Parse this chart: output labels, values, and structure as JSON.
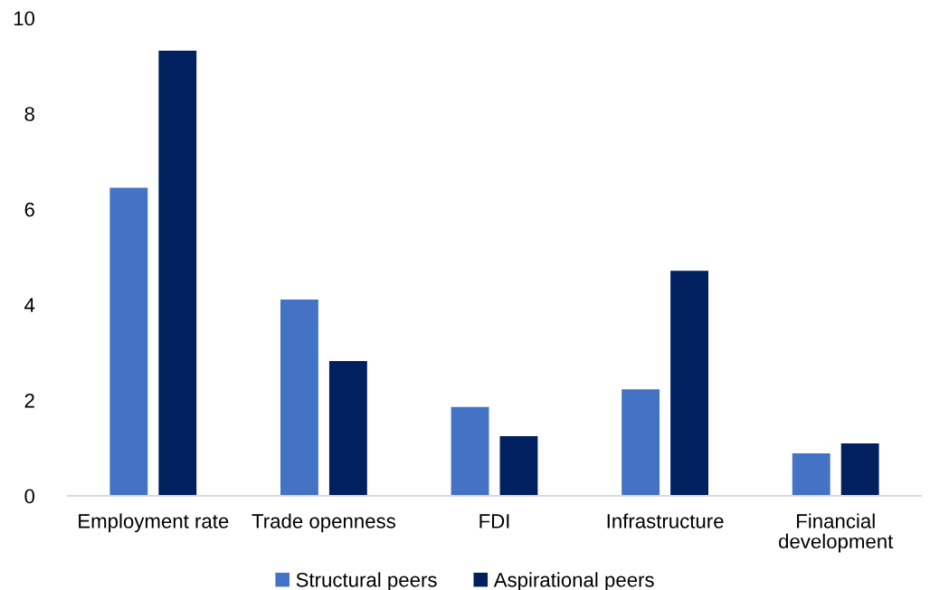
{
  "chart_data": {
    "type": "bar",
    "categories": [
      "Employment rate",
      "Trade openness",
      "FDI",
      "Infrastructure",
      "Financial development"
    ],
    "series": [
      {
        "name": "Structural peers",
        "color": "#4472c4",
        "values": [
          6.45,
          4.11,
          1.86,
          2.23,
          0.89
        ]
      },
      {
        "name": "Aspirational peers",
        "color": "#002060",
        "values": [
          9.32,
          2.82,
          1.25,
          4.71,
          1.1
        ]
      }
    ],
    "ylim": [
      0,
      10
    ],
    "yticks": [
      0,
      2,
      4,
      6,
      8,
      10
    ],
    "legend": "bottom"
  }
}
